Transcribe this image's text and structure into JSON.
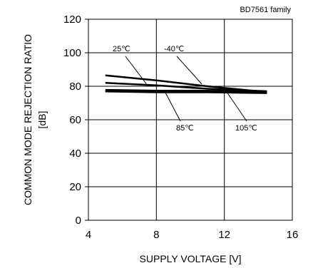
{
  "chart_data": {
    "type": "line",
    "title": "",
    "note": "BD7561 family",
    "xlabel": "SUPPLY VOLTAGE [V]",
    "ylabel_line1": "COMMON MODE REJECTION RATIO",
    "ylabel_line2": "[dB]",
    "xlim": [
      4,
      16
    ],
    "ylim": [
      0,
      120
    ],
    "xticks": [
      4,
      8,
      12,
      16
    ],
    "yticks": [
      0,
      20,
      40,
      60,
      80,
      100,
      120
    ],
    "grid": true,
    "series": [
      {
        "name": "-40℃",
        "x": [
          5,
          8,
          11,
          14.5
        ],
        "y": [
          86.5,
          83.5,
          80,
          76.5
        ]
      },
      {
        "name": "25℃",
        "x": [
          5,
          8,
          11,
          14.5
        ],
        "y": [
          82,
          80.5,
          78.5,
          77
        ]
      },
      {
        "name": "85℃",
        "x": [
          5,
          8,
          11,
          14.5
        ],
        "y": [
          77.5,
          77,
          77,
          76.5
        ]
      },
      {
        "name": "105℃",
        "x": [
          5,
          8,
          11,
          14.5
        ],
        "y": [
          77,
          76.5,
          76.5,
          76
        ]
      }
    ],
    "annotations": [
      {
        "label": "25℃",
        "series": "25℃"
      },
      {
        "label": "-40℃",
        "series": "-40℃"
      },
      {
        "label": "85℃",
        "series": "85℃"
      },
      {
        "label": "105℃",
        "series": "105℃"
      }
    ]
  }
}
